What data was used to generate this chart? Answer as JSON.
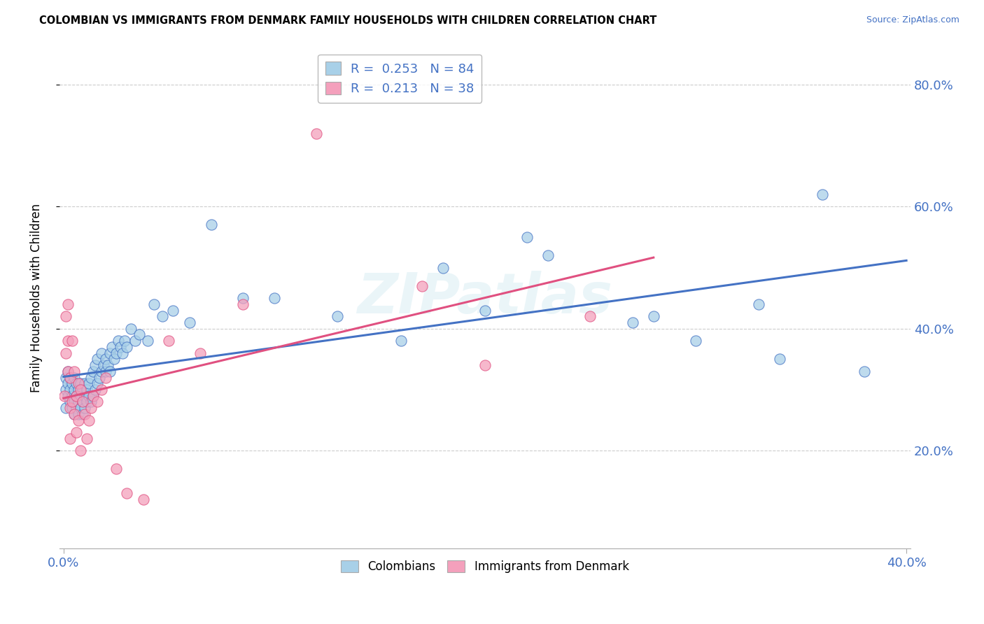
{
  "title": "COLOMBIAN VS IMMIGRANTS FROM DENMARK FAMILY HOUSEHOLDS WITH CHILDREN CORRELATION CHART",
  "source": "Source: ZipAtlas.com",
  "ylabel": "Family Households with Children",
  "xlim": [
    -0.002,
    0.402
  ],
  "ylim": [
    0.04,
    0.86
  ],
  "yticks": [
    0.2,
    0.4,
    0.6,
    0.8
  ],
  "ytick_labels": [
    "20.0%",
    "40.0%",
    "60.0%",
    "80.0%"
  ],
  "colombians_R": 0.253,
  "colombians_N": 84,
  "denmark_R": 0.213,
  "denmark_N": 38,
  "color_colombians": "#a8d0e8",
  "color_denmark": "#f4a0bc",
  "color_line_colombians": "#4472c4",
  "color_line_denmark": "#e05080",
  "watermark": "ZIPatlas",
  "colombians_x": [
    0.001,
    0.001,
    0.001,
    0.002,
    0.002,
    0.002,
    0.003,
    0.003,
    0.003,
    0.004,
    0.004,
    0.004,
    0.005,
    0.005,
    0.005,
    0.005,
    0.006,
    0.006,
    0.006,
    0.007,
    0.007,
    0.007,
    0.008,
    0.008,
    0.008,
    0.009,
    0.009,
    0.009,
    0.01,
    0.01,
    0.01,
    0.011,
    0.011,
    0.012,
    0.012,
    0.013,
    0.013,
    0.014,
    0.014,
    0.015,
    0.015,
    0.016,
    0.016,
    0.017,
    0.018,
    0.018,
    0.019,
    0.02,
    0.02,
    0.021,
    0.022,
    0.022,
    0.023,
    0.024,
    0.025,
    0.026,
    0.027,
    0.028,
    0.029,
    0.03,
    0.032,
    0.034,
    0.036,
    0.04,
    0.043,
    0.047,
    0.052,
    0.06,
    0.07,
    0.085,
    0.1,
    0.13,
    0.16,
    0.2,
    0.23,
    0.27,
    0.3,
    0.34,
    0.36,
    0.38,
    0.18,
    0.22,
    0.28,
    0.33
  ],
  "colombians_y": [
    0.3,
    0.27,
    0.32,
    0.29,
    0.31,
    0.33,
    0.28,
    0.3,
    0.32,
    0.27,
    0.29,
    0.31,
    0.26,
    0.28,
    0.3,
    0.32,
    0.27,
    0.29,
    0.31,
    0.26,
    0.28,
    0.3,
    0.27,
    0.29,
    0.31,
    0.26,
    0.28,
    0.3,
    0.27,
    0.29,
    0.31,
    0.28,
    0.3,
    0.29,
    0.31,
    0.28,
    0.32,
    0.29,
    0.33,
    0.3,
    0.34,
    0.31,
    0.35,
    0.32,
    0.33,
    0.36,
    0.34,
    0.33,
    0.35,
    0.34,
    0.36,
    0.33,
    0.37,
    0.35,
    0.36,
    0.38,
    0.37,
    0.36,
    0.38,
    0.37,
    0.4,
    0.38,
    0.39,
    0.38,
    0.44,
    0.42,
    0.43,
    0.41,
    0.57,
    0.45,
    0.45,
    0.42,
    0.38,
    0.43,
    0.52,
    0.41,
    0.38,
    0.35,
    0.62,
    0.33,
    0.5,
    0.55,
    0.42,
    0.44
  ],
  "denmark_x": [
    0.0005,
    0.001,
    0.001,
    0.002,
    0.002,
    0.002,
    0.003,
    0.003,
    0.003,
    0.004,
    0.004,
    0.005,
    0.005,
    0.006,
    0.006,
    0.007,
    0.007,
    0.008,
    0.008,
    0.009,
    0.01,
    0.011,
    0.012,
    0.013,
    0.014,
    0.016,
    0.018,
    0.02,
    0.025,
    0.03,
    0.038,
    0.05,
    0.065,
    0.085,
    0.12,
    0.17,
    0.2,
    0.25
  ],
  "denmark_y": [
    0.29,
    0.36,
    0.42,
    0.33,
    0.38,
    0.44,
    0.27,
    0.32,
    0.22,
    0.28,
    0.38,
    0.26,
    0.33,
    0.29,
    0.23,
    0.31,
    0.25,
    0.3,
    0.2,
    0.28,
    0.26,
    0.22,
    0.25,
    0.27,
    0.29,
    0.28,
    0.3,
    0.32,
    0.17,
    0.13,
    0.12,
    0.38,
    0.36,
    0.44,
    0.72,
    0.47,
    0.34,
    0.42
  ]
}
